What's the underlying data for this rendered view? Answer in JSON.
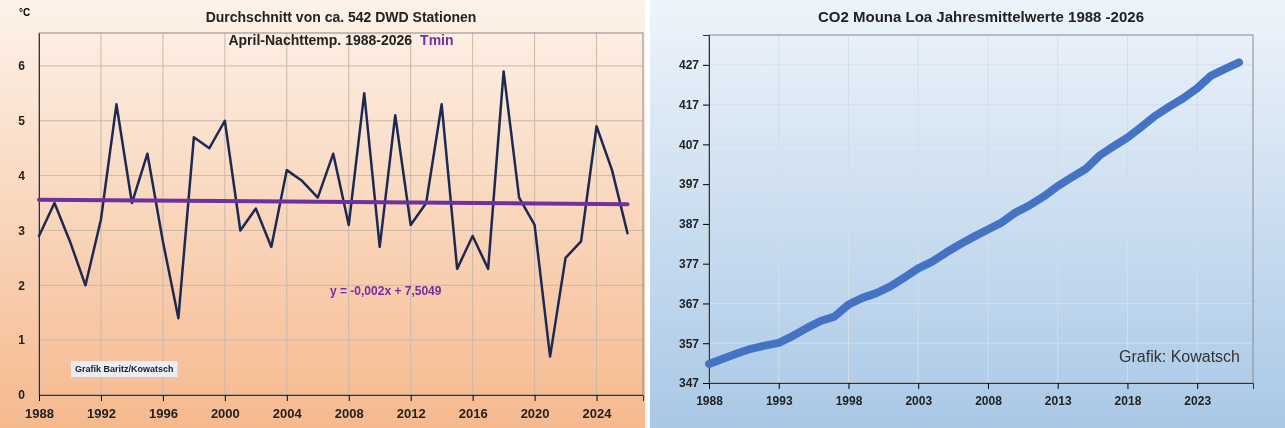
{
  "chart_data": [
    {
      "type": "line",
      "title": "Durchschnitt von ca. 542 DWD Stationen",
      "subtitle": "April-Nachttemp. 1988-2026",
      "ylabel": "°C",
      "x": [
        1988,
        1989,
        1990,
        1991,
        1992,
        1993,
        1994,
        1995,
        1996,
        1997,
        1998,
        1999,
        2000,
        2001,
        2002,
        2003,
        2004,
        2005,
        2006,
        2007,
        2008,
        2009,
        2010,
        2011,
        2012,
        2013,
        2014,
        2015,
        2016,
        2017,
        2018,
        2019,
        2020,
        2021,
        2022,
        2023,
        2024,
        2025,
        2026
      ],
      "series": [
        {
          "color": "#1c2a52",
          "values": [
            2.9,
            3.5,
            2.8,
            2.0,
            3.2,
            5.3,
            3.5,
            4.4,
            2.8,
            1.4,
            4.7,
            4.5,
            5.0,
            3.0,
            3.4,
            2.7,
            4.1,
            3.9,
            3.6,
            4.4,
            3.1,
            5.5,
            2.7,
            5.1,
            3.1,
            3.5,
            5.3,
            2.3,
            2.9,
            2.3,
            5.9,
            3.6,
            3.1,
            0.7,
            2.5,
            2.8,
            4.9,
            4.1,
            2.95
          ]
        },
        {
          "name": "Tmin",
          "color": "#7030a0",
          "x": [
            1988,
            2026
          ],
          "values": [
            3.56,
            3.48
          ]
        }
      ],
      "xlim": [
        1988,
        2027
      ],
      "ylim": [
        0,
        6.6
      ],
      "xticks": [
        1988,
        1992,
        1996,
        2000,
        2004,
        2008,
        2012,
        2016,
        2020,
        2024
      ],
      "yticks": [
        0,
        1,
        2,
        3,
        4,
        5,
        6
      ],
      "grid": true,
      "annotations": [
        "y = -0,002x + 7,5049",
        "Grafik  Baritz/Kowatsch"
      ]
    },
    {
      "type": "line",
      "title": "CO2 Mouna Loa Jahresmittelwerte 1988 -2026",
      "x": [
        1988,
        1989,
        1990,
        1991,
        1992,
        1993,
        1994,
        1995,
        1996,
        1997,
        1998,
        1999,
        2000,
        2001,
        2002,
        2003,
        2004,
        2005,
        2006,
        2007,
        2008,
        2009,
        2010,
        2011,
        2012,
        2013,
        2014,
        2015,
        2016,
        2017,
        2018,
        2019,
        2020,
        2021,
        2022,
        2023,
        2024,
        2025,
        2026
      ],
      "series": [
        {
          "color": "#4472c4",
          "values": [
            351.8,
            353.1,
            354.4,
            355.6,
            356.4,
            357.1,
            358.8,
            360.8,
            362.6,
            363.7,
            366.7,
            368.4,
            369.6,
            371.3,
            373.5,
            375.8,
            377.5,
            379.8,
            381.9,
            383.8,
            385.6,
            387.4,
            389.9,
            391.7,
            393.9,
            396.5,
            398.7,
            400.8,
            404.2,
            406.5,
            408.7,
            411.4,
            414.2,
            416.5,
            418.6,
            421.1,
            424.3,
            426.0,
            427.6
          ]
        }
      ],
      "xlim": [
        1988,
        2027
      ],
      "ylim": [
        347,
        434.5
      ],
      "xticks": [
        1988,
        1993,
        1998,
        2003,
        2008,
        2013,
        2018,
        2023
      ],
      "yticks": [
        347,
        357,
        367,
        377,
        387,
        397,
        407,
        417,
        427
      ],
      "grid": true,
      "annotations": [
        "Grafik: Kowatsch"
      ]
    }
  ]
}
